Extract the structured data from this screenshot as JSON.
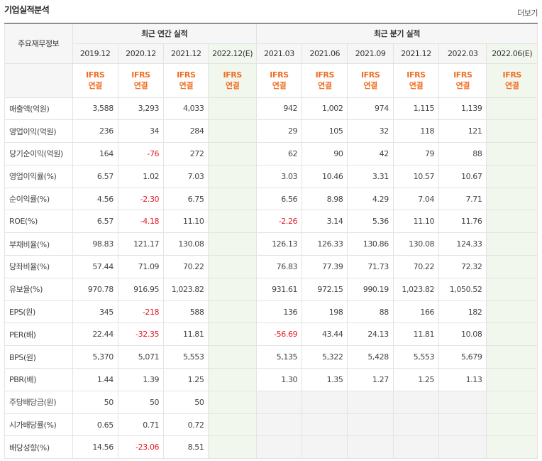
{
  "header": {
    "title": "기업실적분석",
    "more_label": "더보기"
  },
  "table": {
    "corner_label": "주요재무정보",
    "groups": [
      "최근 연간 실적",
      "최근 분기 실적"
    ],
    "annual_dates": [
      "2019.12",
      "2020.12",
      "2021.12",
      "2022.12(E)"
    ],
    "quarter_dates": [
      "2021.03",
      "2021.06",
      "2021.09",
      "2021.12",
      "2022.03",
      "2022.06(E)"
    ],
    "ifrs_line1": "IFRS",
    "ifrs_line2": "연결",
    "rows": [
      {
        "label": "매출액(억원)",
        "values": [
          "3,588",
          "3,293",
          "4,033",
          "",
          "942",
          "1,002",
          "974",
          "1,115",
          "1,139",
          ""
        ]
      },
      {
        "label": "영업이익(억원)",
        "values": [
          "236",
          "34",
          "284",
          "",
          "29",
          "105",
          "32",
          "118",
          "121",
          ""
        ]
      },
      {
        "label": "당기순이익(억원)",
        "values": [
          "164",
          "-76",
          "272",
          "",
          "62",
          "90",
          "42",
          "79",
          "88",
          ""
        ]
      },
      {
        "label": "영업이익률(%)",
        "values": [
          "6.57",
          "1.02",
          "7.03",
          "",
          "3.03",
          "10.46",
          "3.31",
          "10.57",
          "10.67",
          ""
        ]
      },
      {
        "label": "순이익률(%)",
        "values": [
          "4.56",
          "-2.30",
          "6.75",
          "",
          "6.56",
          "8.98",
          "4.29",
          "7.04",
          "7.71",
          ""
        ]
      },
      {
        "label": "ROE(%)",
        "values": [
          "6.57",
          "-4.18",
          "11.10",
          "",
          "-2.26",
          "3.14",
          "5.36",
          "11.10",
          "11.76",
          ""
        ]
      },
      {
        "label": "부채비율(%)",
        "values": [
          "98.83",
          "121.17",
          "130.08",
          "",
          "126.13",
          "126.33",
          "130.86",
          "130.08",
          "124.33",
          ""
        ]
      },
      {
        "label": "당좌비율(%)",
        "values": [
          "57.44",
          "71.09",
          "70.22",
          "",
          "76.83",
          "77.39",
          "71.73",
          "70.22",
          "72.32",
          ""
        ]
      },
      {
        "label": "유보율(%)",
        "values": [
          "970.78",
          "916.95",
          "1,023.82",
          "",
          "931.61",
          "972.15",
          "990.19",
          "1,023.82",
          "1,050.52",
          ""
        ]
      },
      {
        "label": "EPS(원)",
        "values": [
          "345",
          "-218",
          "588",
          "",
          "136",
          "198",
          "88",
          "166",
          "182",
          ""
        ]
      },
      {
        "label": "PER(배)",
        "values": [
          "22.44",
          "-32.35",
          "11.81",
          "",
          "-56.69",
          "43.44",
          "24.13",
          "11.81",
          "10.08",
          ""
        ]
      },
      {
        "label": "BPS(원)",
        "values": [
          "5,370",
          "5,071",
          "5,553",
          "",
          "5,135",
          "5,322",
          "5,428",
          "5,553",
          "5,679",
          ""
        ]
      },
      {
        "label": "PBR(배)",
        "values": [
          "1.44",
          "1.39",
          "1.25",
          "",
          "1.30",
          "1.35",
          "1.27",
          "1.25",
          "1.13",
          ""
        ]
      },
      {
        "label": "주당배당금(원)",
        "values": [
          "50",
          "50",
          "50",
          "",
          "",
          "",
          "",
          "",
          "",
          ""
        ]
      },
      {
        "label": "시가배당률(%)",
        "values": [
          "0.65",
          "0.71",
          "0.72",
          "",
          "",
          "",
          "",
          "",
          "",
          ""
        ]
      },
      {
        "label": "배당성향(%)",
        "values": [
          "14.56",
          "-23.06",
          "8.51",
          "",
          "",
          "",
          "",
          "",
          "",
          ""
        ]
      }
    ]
  },
  "colors": {
    "negative": "#e51c23",
    "ifrs": "#f06d22",
    "estimate_bg": "#f2f7ee"
  }
}
